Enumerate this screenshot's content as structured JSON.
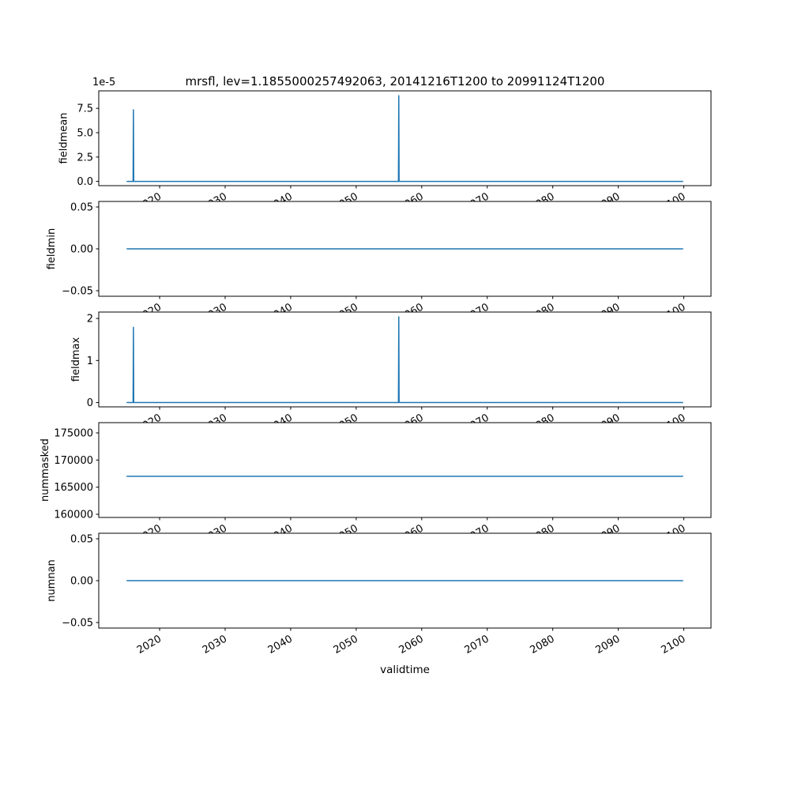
{
  "figure": {
    "title": "mrsfl, lev=1.1855000257492063, 20141216T1200 to 20991124T1200",
    "xlabel": "validtime",
    "line_color": "#1f77b4",
    "background": "#ffffff",
    "xlim": [
      2010.71,
      2104.15
    ],
    "xticks": [
      2020,
      2030,
      2040,
      2050,
      2060,
      2070,
      2080,
      2090,
      2100
    ],
    "grid": "off",
    "legend": "none"
  },
  "chart_data": [
    {
      "type": "line",
      "ylabel": "fieldmean",
      "offset_text": "1e-5",
      "ylim": [
        -4.4e-06,
        9.3e-05
      ],
      "yticks": [
        0.0,
        2.5e-05,
        5e-05,
        7.5e-05
      ],
      "ytick_labels": [
        "0.0",
        "2.5",
        "5.0",
        "7.5"
      ],
      "x": [
        2014.96,
        2015.95,
        2016.0,
        2016.05,
        2056.45,
        2056.5,
        2056.55,
        2099.9
      ],
      "y": [
        0,
        0,
        7.4e-05,
        0,
        0,
        8.85e-05,
        0,
        0
      ]
    },
    {
      "type": "line",
      "ylabel": "fieldmin",
      "offset_text": "",
      "ylim": [
        -0.0566,
        0.0566
      ],
      "yticks": [
        -0.05,
        0.0,
        0.05
      ],
      "ytick_labels": [
        "−0.05",
        "0.00",
        "0.05"
      ],
      "x": [
        2014.96,
        2099.9
      ],
      "y": [
        0,
        0
      ]
    },
    {
      "type": "line",
      "ylabel": "fieldmax",
      "offset_text": "",
      "ylim": [
        -0.1025,
        2.1525
      ],
      "yticks": [
        0,
        1,
        2
      ],
      "ytick_labels": [
        "0",
        "1",
        "2"
      ],
      "x": [
        2014.96,
        2015.95,
        2016.0,
        2016.05,
        2056.45,
        2056.5,
        2056.55,
        2099.9
      ],
      "y": [
        0,
        0,
        1.8,
        0,
        0,
        2.05,
        0,
        0
      ]
    },
    {
      "type": "line",
      "ylabel": "nummasked",
      "offset_text": "",
      "ylim": [
        159420,
        176890
      ],
      "yticks": [
        160000,
        165000,
        170000,
        175000
      ],
      "ytick_labels": [
        "160000",
        "165000",
        "170000",
        "175000"
      ],
      "x": [
        2014.96,
        2099.9
      ],
      "y": [
        167000,
        167000
      ]
    },
    {
      "type": "line",
      "ylabel": "numnan",
      "offset_text": "",
      "ylim": [
        -0.0566,
        0.0566
      ],
      "yticks": [
        -0.05,
        0.0,
        0.05
      ],
      "ytick_labels": [
        "−0.05",
        "0.00",
        "0.05"
      ],
      "x": [
        2014.96,
        2099.9
      ],
      "y": [
        0,
        0
      ]
    }
  ]
}
